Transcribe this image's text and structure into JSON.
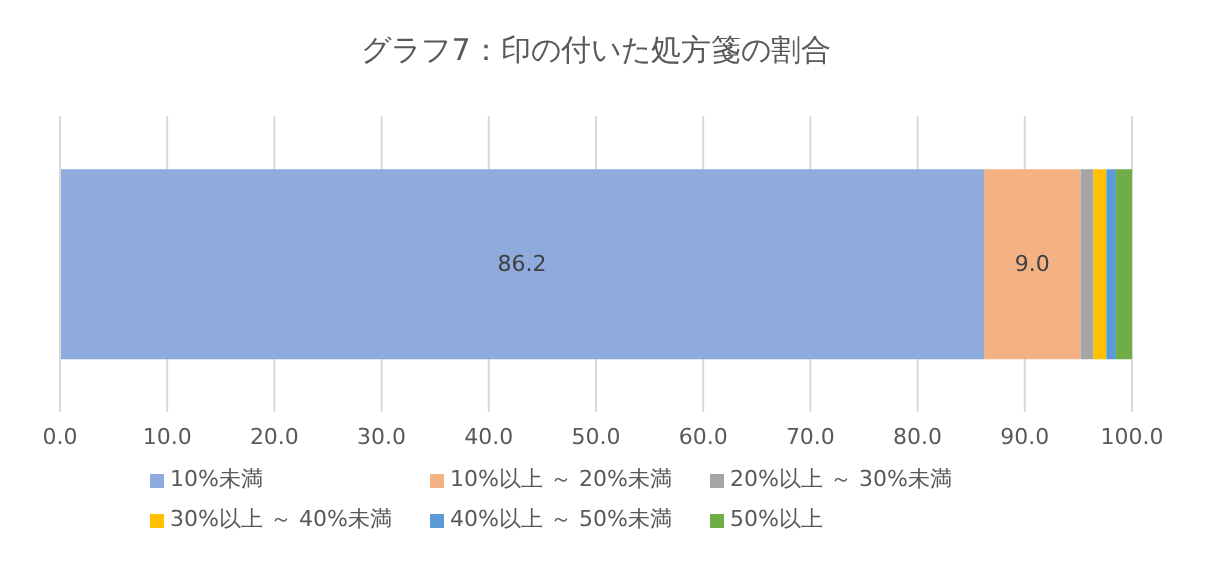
{
  "chart_data": {
    "type": "bar",
    "title": "グラフ7：印の付いた処方箋の割合",
    "orientation": "horizontal",
    "stacked": true,
    "categories": [
      null
    ],
    "series": [
      {
        "name": "10%未満",
        "color": "#8faadc",
        "values": [
          86.2
        ],
        "value_labels": [
          "86.2"
        ]
      },
      {
        "name": "10%以上 ～ 20%未満",
        "color": "#f4b183",
        "values": [
          9.0
        ],
        "value_labels": [
          "9.0"
        ]
      },
      {
        "name": "20%以上 ～ 30%未満",
        "color": "#a5a5a5",
        "values": [
          1.2
        ]
      },
      {
        "name": "30%以上 ～ 40%未満",
        "color": "#ffc000",
        "values": [
          1.2
        ]
      },
      {
        "name": "40%以上 ～ 50%未満",
        "color": "#5b9bd5",
        "values": [
          0.9
        ]
      },
      {
        "name": "50%以上",
        "color": "#70ad47",
        "values": [
          1.5
        ]
      }
    ],
    "xlim": [
      0,
      100
    ],
    "xticks": [
      {
        "value": 0,
        "label": "0.0"
      },
      {
        "value": 10,
        "label": "10.0"
      },
      {
        "value": 20,
        "label": "20.0"
      },
      {
        "value": 30,
        "label": "30.0"
      },
      {
        "value": 40,
        "label": "40.0"
      },
      {
        "value": 50,
        "label": "50.0"
      },
      {
        "value": 60,
        "label": "60.0"
      },
      {
        "value": 70,
        "label": "70.0"
      },
      {
        "value": 80,
        "label": "80.0"
      },
      {
        "value": 90,
        "label": "90.0"
      },
      {
        "value": 100,
        "label": "100.0"
      }
    ],
    "grid": "x",
    "legend": "bottom"
  }
}
